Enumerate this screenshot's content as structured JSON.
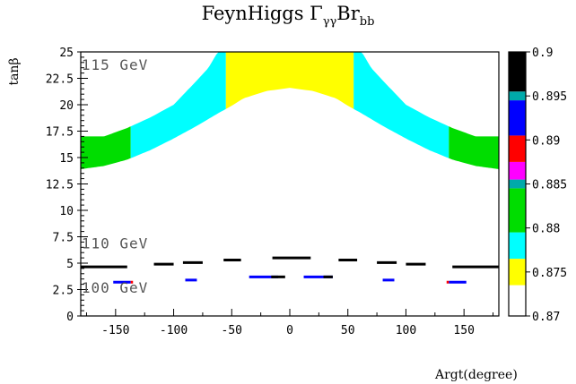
{
  "chart_data": {
    "type": "heatmap",
    "title_main": "FeynHiggs Γ",
    "title_sub1": "γγ",
    "title_mid": "Br",
    "title_sub2": "bb",
    "xlabel": "Argt(degree)",
    "ylabel": "tanβ",
    "xlim": [
      -180,
      180
    ],
    "ylim": [
      0,
      25
    ],
    "x_ticks": [
      -150,
      -100,
      -50,
      0,
      50,
      100,
      150
    ],
    "x_tick_labels": [
      "-150",
      "-100",
      "-50",
      "0",
      "50",
      "100",
      "150"
    ],
    "y_ticks": [
      0,
      2.5,
      5,
      7.5,
      10,
      12.5,
      15,
      17.5,
      20,
      22.5,
      25
    ],
    "y_tick_labels": [
      "0",
      "2.5",
      "5",
      "7.5",
      "10",
      "12.5",
      "15",
      "17.5",
      "20",
      "22.5",
      "25"
    ],
    "annotations": [
      {
        "text": "115 GeV",
        "x": -150,
        "y": 23.8
      },
      {
        "text": "110 GeV",
        "x": -150,
        "y": 6.9
      },
      {
        "text": "100 GeV",
        "x": -150,
        "y": 2.7
      }
    ],
    "colorbar": {
      "range": [
        0.87,
        0.9
      ],
      "tick_values": [
        0.87,
        0.875,
        0.88,
        0.885,
        0.89,
        0.895,
        0.9
      ],
      "tick_labels": [
        "0.87",
        "0.875",
        "0.88",
        "0.885",
        "0.89",
        "0.895",
        "0.9"
      ],
      "bands": [
        {
          "from": 0.87,
          "to": 0.8735,
          "color": "#ffffff"
        },
        {
          "from": 0.8735,
          "to": 0.8765,
          "color": "#ffff00"
        },
        {
          "from": 0.8765,
          "to": 0.8795,
          "color": "#00ffff"
        },
        {
          "from": 0.8795,
          "to": 0.8845,
          "color": "#00dd00"
        },
        {
          "from": 0.8845,
          "to": 0.8855,
          "color": "#00aaaa"
        },
        {
          "from": 0.8855,
          "to": 0.8875,
          "color": "#ff00ff"
        },
        {
          "from": 0.8875,
          "to": 0.8905,
          "color": "#ff0000"
        },
        {
          "from": 0.8905,
          "to": 0.8945,
          "color": "#0000ff"
        },
        {
          "from": 0.8945,
          "to": 0.8955,
          "color": "#00aaaa"
        },
        {
          "from": 0.8955,
          "to": 0.9,
          "color": "#000000"
        }
      ]
    },
    "regions_115GeV": {
      "top_tanb": 25,
      "lower_boundary": [
        [
          -180,
          13.9
        ],
        [
          -160,
          14.2
        ],
        [
          -140,
          14.8
        ],
        [
          -120,
          15.7
        ],
        [
          -100,
          16.8
        ],
        [
          -80,
          18.0
        ],
        [
          -60,
          19.3
        ],
        [
          -50,
          19.9
        ],
        [
          -40,
          20.6
        ],
        [
          -20,
          21.3
        ],
        [
          0,
          21.6
        ],
        [
          20,
          21.3
        ],
        [
          40,
          20.6
        ],
        [
          50,
          19.9
        ],
        [
          60,
          19.3
        ],
        [
          80,
          18.0
        ],
        [
          100,
          16.8
        ],
        [
          120,
          15.7
        ],
        [
          140,
          14.8
        ],
        [
          160,
          14.2
        ],
        [
          180,
          13.9
        ]
      ],
      "upper_boundary_outer": [
        [
          -180,
          17.0
        ],
        [
          -160,
          17.0
        ],
        [
          -140,
          17.8
        ],
        [
          -120,
          18.8
        ],
        [
          -100,
          20.0
        ],
        [
          -80,
          22.3
        ],
        [
          -70,
          23.5
        ],
        [
          -62,
          25.0
        ]
      ],
      "green_cyan_boundary": [
        -137,
        137
      ],
      "cyan_yellow_boundary": [
        -55,
        55
      ],
      "zones": [
        {
          "x_from": -180,
          "x_to": -137,
          "color": "#00dd00"
        },
        {
          "x_from": -137,
          "x_to": -55,
          "color": "#00ffff"
        },
        {
          "x_from": -55,
          "x_to": 55,
          "color": "#ffff00"
        },
        {
          "x_from": 55,
          "x_to": 137,
          "color": "#00ffff"
        },
        {
          "x_from": 137,
          "x_to": 180,
          "color": "#00dd00"
        }
      ]
    },
    "segments_110GeV": [
      {
        "x1": -180,
        "x2": -140,
        "y": 4.65,
        "color": "#000000"
      },
      {
        "x1": -117,
        "x2": -100,
        "y": 4.9,
        "color": "#000000"
      },
      {
        "x1": -92,
        "x2": -75,
        "y": 5.05,
        "color": "#000000"
      },
      {
        "x1": -57,
        "x2": -42,
        "y": 5.3,
        "color": "#000000"
      },
      {
        "x1": -15,
        "x2": 18,
        "y": 5.5,
        "color": "#000000"
      },
      {
        "x1": 42,
        "x2": 58,
        "y": 5.3,
        "color": "#000000"
      },
      {
        "x1": 75,
        "x2": 92,
        "y": 5.05,
        "color": "#000000"
      },
      {
        "x1": 100,
        "x2": 117,
        "y": 4.9,
        "color": "#000000"
      },
      {
        "x1": 140,
        "x2": 180,
        "y": 4.65,
        "color": "#000000"
      }
    ],
    "segments_100GeV": [
      {
        "x1": -152,
        "x2": -137,
        "y": 3.2,
        "color": "#0000ff",
        "tip": "#ff0000"
      },
      {
        "x1": -90,
        "x2": -80,
        "y": 3.4,
        "color": "#0000ff"
      },
      {
        "x1": -35,
        "x2": -10,
        "y": 3.7,
        "color": "#0000ff",
        "tail": "#000000"
      },
      {
        "x1": 12,
        "x2": 37,
        "y": 3.7,
        "color": "#0000ff",
        "tail": "#000000"
      },
      {
        "x1": 80,
        "x2": 90,
        "y": 3.4,
        "color": "#0000ff"
      },
      {
        "x1": 137,
        "x2": 152,
        "y": 3.2,
        "color": "#0000ff",
        "tip": "#ff0000"
      }
    ]
  }
}
